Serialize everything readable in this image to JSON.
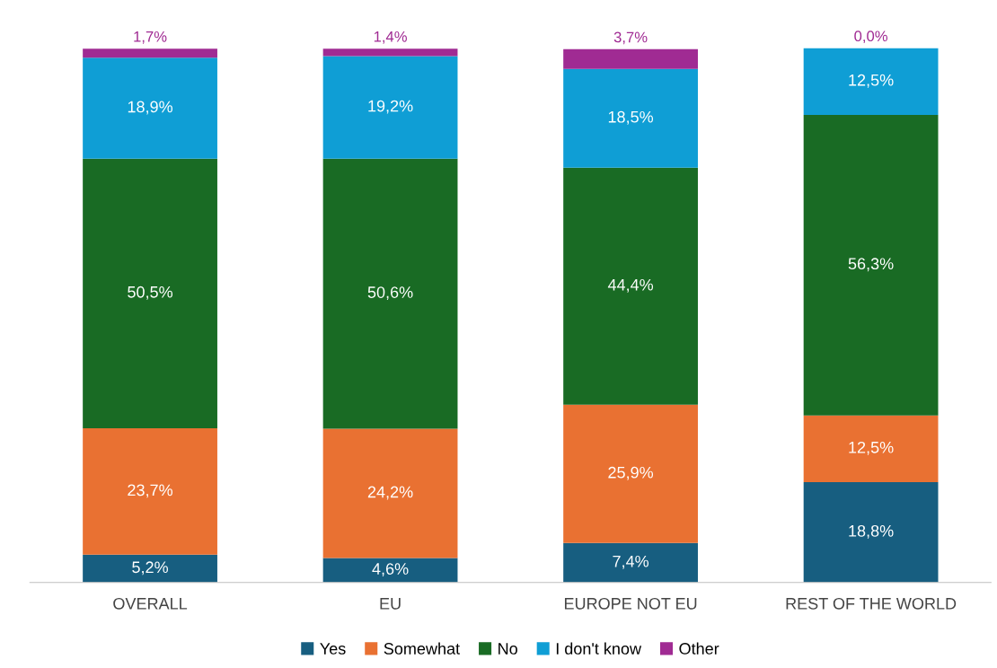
{
  "chart_data": {
    "type": "bar",
    "stacked": true,
    "categories": [
      "OVERALL",
      "EU",
      "EUROPE NOT EU",
      "REST OF THE WORLD"
    ],
    "series": [
      {
        "name": "Yes",
        "color": "#175e80",
        "values": [
          5.2,
          4.6,
          7.4,
          18.8
        ],
        "value_labels": [
          "5,2%",
          "4,6%",
          "7,4%",
          "18,8%"
        ]
      },
      {
        "name": "Somewhat",
        "color": "#e97132",
        "values": [
          23.7,
          24.2,
          25.9,
          12.5
        ],
        "value_labels": [
          "23,7%",
          "24,2%",
          "25,9%",
          "12,5%"
        ]
      },
      {
        "name": "No",
        "color": "#196b24",
        "values": [
          50.5,
          50.6,
          44.4,
          56.3
        ],
        "value_labels": [
          "50,5%",
          "50,6%",
          "44,4%",
          "56,3%"
        ]
      },
      {
        "name": "I don't know",
        "color": "#0f9ed5",
        "values": [
          18.9,
          19.2,
          18.5,
          12.5
        ],
        "value_labels": [
          "18,9%",
          "19,2%",
          "18,5%",
          "12,5%"
        ]
      },
      {
        "name": "Other",
        "color": "#a02b93",
        "values": [
          1.7,
          1.4,
          3.7,
          0.0
        ],
        "value_labels": [
          "1,7%",
          "1,4%",
          "3,7%",
          "0,0%"
        ]
      }
    ],
    "ylim": [
      0,
      100.1
    ],
    "tick_labels": "x",
    "legend": "bottom",
    "grid": false
  }
}
